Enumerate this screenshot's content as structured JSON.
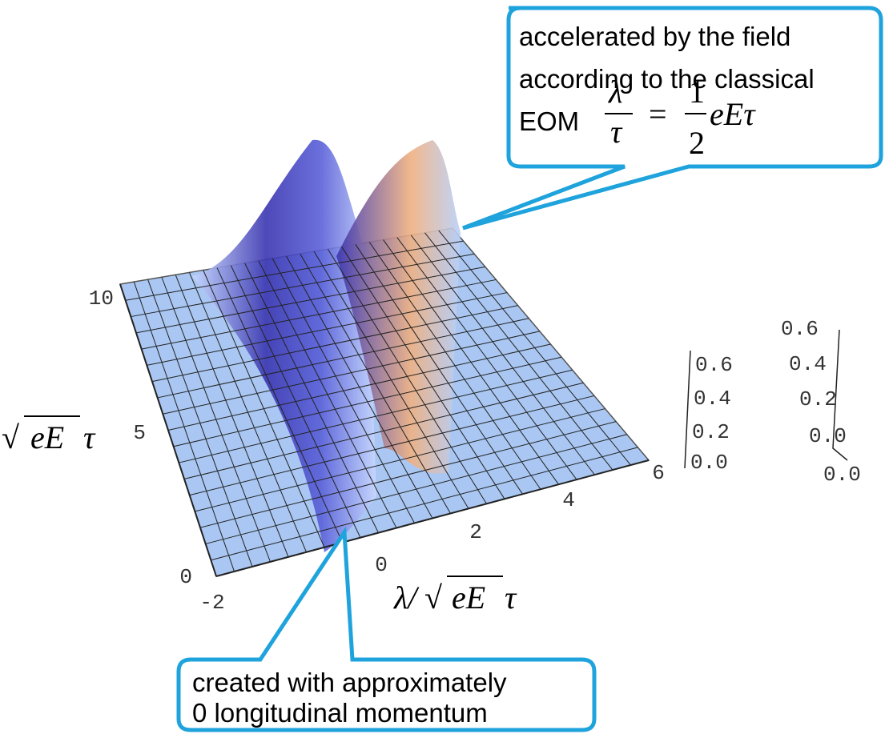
{
  "top_callout": {
    "lines": [
      "accelerated by the field",
      "according to the classical",
      "EOM"
    ],
    "formula": {
      "lhs_num": "λ",
      "lhs_den": "τ",
      "eq": "=",
      "rhs_num": "1",
      "rhs_den": "2",
      "rhs_tail": "eEτ"
    }
  },
  "bottom_callout": {
    "lines": [
      "created with approximately",
      "0 longitudinal momentum"
    ]
  },
  "y_axis": {
    "label": {
      "radical": "√",
      "arg": "eE",
      "tail": "τ"
    },
    "ticks": [
      "0",
      "5",
      "10"
    ]
  },
  "x_axis": {
    "label": {
      "prefix": "λ/",
      "radical": "√",
      "arg": "eE",
      "tail": "τ"
    },
    "ticks": [
      "-2",
      "0",
      "2",
      "4",
      "6"
    ]
  },
  "z_axis": {
    "ticks": [
      "0.6",
      "0.4",
      "0.2",
      "0.0"
    ]
  },
  "z_axis_2": {
    "ticks": [
      "0.6",
      "0.4",
      "0.2",
      "0.0",
      "0.0"
    ]
  }
}
